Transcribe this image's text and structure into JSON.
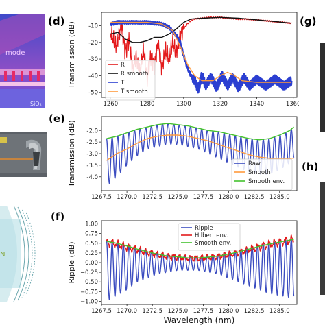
{
  "panel_labels": {
    "d": "(d)",
    "e": "(e)",
    "f": "(f)",
    "g": "(g)",
    "h": "(h)"
  },
  "left_images": {
    "sio2": "SiO₂",
    "mode": "mode"
  },
  "colors": {
    "R": "#e31a1c",
    "R_smooth": "#111111",
    "T": "#2b3fd1",
    "T_smooth": "#ff9a3c",
    "Raw": "#3b4cc0",
    "Smooth": "#ff9a3c",
    "Smooth_env": "#44c22e",
    "Ripple": "#3b4cc0",
    "Hilbert_env": "#e31a1c"
  },
  "chart_data": [
    {
      "id": "d",
      "type": "line",
      "xlabel": "",
      "ylabel": "Transmission (dB)",
      "xlim": [
        1255,
        1362
      ],
      "ylim": [
        -53,
        -2
      ],
      "xticks": [
        1260,
        1280,
        1300,
        1320,
        1340,
        1360
      ],
      "yticks": [
        -10,
        -20,
        -30,
        -40,
        -50
      ],
      "legend_position": "lower-left",
      "series": [
        {
          "name": "R",
          "color_key": "R",
          "x": [
            1260,
            1263,
            1266,
            1268,
            1270,
            1272,
            1274,
            1276,
            1278,
            1280,
            1282,
            1284,
            1286,
            1288,
            1290,
            1292,
            1294,
            1296,
            1298,
            1300,
            1302,
            1304,
            1306,
            1310,
            1315,
            1320,
            1325,
            1330,
            1335,
            1340,
            1345,
            1350,
            1355,
            1359
          ],
          "y": [
            -14,
            -22,
            -10,
            -26,
            -18,
            -36,
            -30,
            -38,
            -24,
            -42,
            -28,
            -34,
            -20,
            -36,
            -25,
            -30,
            -20,
            -26,
            -16,
            -12,
            -9,
            -7,
            -6,
            -5.5,
            -5,
            -5,
            -5.5,
            -6,
            -6,
            -6.5,
            -7,
            -7.5,
            -8,
            -8.5
          ]
        },
        {
          "name": "R smooth",
          "color_key": "R_smooth",
          "x": [
            1260,
            1264,
            1268,
            1272,
            1276,
            1280,
            1284,
            1288,
            1292,
            1296,
            1300,
            1304,
            1310,
            1320,
            1330,
            1340,
            1350,
            1359
          ],
          "y": [
            -15,
            -14,
            -18,
            -20,
            -20,
            -19,
            -17,
            -17,
            -15,
            -12,
            -8,
            -6,
            -5.5,
            -5,
            -5.5,
            -6.5,
            -7.5,
            -8.5
          ]
        },
        {
          "name": "T",
          "color_key": "T",
          "x": [
            1260,
            1264,
            1268,
            1272,
            1276,
            1280,
            1284,
            1288,
            1292,
            1296,
            1298,
            1300,
            1302,
            1304,
            1306,
            1308,
            1310,
            1312,
            1315,
            1318,
            1321,
            1324,
            1327,
            1330,
            1333,
            1336,
            1340,
            1345,
            1350,
            1355,
            1359
          ],
          "y": [
            -9,
            -8,
            -8,
            -8,
            -8,
            -8,
            -8.5,
            -9,
            -11,
            -16,
            -20,
            -28,
            -35,
            -40,
            -43,
            -48,
            -40,
            -46,
            -41,
            -47,
            -40,
            -46,
            -41,
            -47,
            -41,
            -46,
            -42,
            -46,
            -42,
            -46,
            -43
          ]
        },
        {
          "name": "T smooth",
          "color_key": "T_smooth",
          "x": [
            1260,
            1270,
            1280,
            1288,
            1294,
            1298,
            1302,
            1306,
            1310,
            1316,
            1320,
            1324,
            1328,
            1332,
            1340,
            1350,
            1359
          ],
          "y": [
            -8,
            -8,
            -8,
            -9,
            -13,
            -22,
            -33,
            -40,
            -43,
            -43,
            -40,
            -38,
            -40,
            -43,
            -44,
            -44,
            -44
          ]
        }
      ]
    },
    {
      "id": "e",
      "type": "line",
      "xlabel": "",
      "ylabel": "Transmission (dB)",
      "xlim": [
        1267.5,
        1286.7
      ],
      "ylim": [
        -4.6,
        -1.4
      ],
      "xticks": [
        1267.5,
        1270.0,
        1272.5,
        1275.0,
        1277.5,
        1280.0,
        1282.5,
        1285.0
      ],
      "xtick_labels": [
        "1267.5",
        "1270.0",
        "1272.5",
        "1275.0",
        "1277.5",
        "1280.0",
        "1282.5",
        "1285.0"
      ],
      "yticks": [
        -2.0,
        -2.5,
        -3.0,
        -3.5,
        -4.0
      ],
      "ytick_labels": [
        "-2.0",
        "-2.5",
        "-3.0",
        "-3.5",
        "-4.0"
      ],
      "legend_position": "lower-right",
      "ripple_period": 0.55,
      "series": [
        {
          "name": "Raw",
          "color_key": "Raw",
          "kind": "ripple",
          "x": [
            1268.0,
            1269.0,
            1270.0,
            1271.0,
            1272.0,
            1273.0,
            1274.0,
            1275.0,
            1276.0,
            1277.0,
            1278.0,
            1279.0,
            1280.0,
            1281.0,
            1282.0,
            1283.0,
            1284.0,
            1285.0,
            1286.0,
            1286.4
          ],
          "upper": [
            -2.35,
            -2.25,
            -2.1,
            -1.95,
            -1.85,
            -1.75,
            -1.7,
            -1.75,
            -1.8,
            -1.9,
            -2.0,
            -2.05,
            -2.15,
            -2.25,
            -2.35,
            -2.4,
            -2.35,
            -2.2,
            -2.0,
            -1.85
          ],
          "lower": [
            -4.4,
            -4.0,
            -3.5,
            -3.1,
            -2.8,
            -2.7,
            -2.6,
            -2.6,
            -2.7,
            -2.8,
            -3.0,
            -3.2,
            -3.4,
            -3.6,
            -3.8,
            -3.9,
            -3.9,
            -3.7,
            -3.4,
            -3.2
          ]
        },
        {
          "name": "Smooth",
          "color_key": "Smooth",
          "x": [
            1268.0,
            1269.0,
            1270.0,
            1271.0,
            1272.0,
            1273.0,
            1274.0,
            1275.0,
            1276.0,
            1277.0,
            1278.0,
            1279.0,
            1280.0,
            1281.0,
            1282.0,
            1283.0,
            1284.0,
            1285.0,
            1286.0,
            1286.4
          ],
          "y": [
            -3.3,
            -3.0,
            -2.8,
            -2.55,
            -2.35,
            -2.25,
            -2.2,
            -2.2,
            -2.25,
            -2.35,
            -2.45,
            -2.6,
            -2.75,
            -2.9,
            -3.05,
            -3.15,
            -3.2,
            -3.2,
            -3.2,
            -3.2
          ]
        },
        {
          "name": "Smooth env.",
          "color_key": "Smooth_env",
          "x": [
            1268.0,
            1269.0,
            1270.0,
            1271.0,
            1272.0,
            1273.0,
            1274.0,
            1275.0,
            1276.0,
            1277.0,
            1278.0,
            1279.0,
            1280.0,
            1281.0,
            1282.0,
            1283.0,
            1284.0,
            1285.0,
            1286.0,
            1286.4
          ],
          "y": [
            -2.35,
            -2.25,
            -2.1,
            -1.95,
            -1.85,
            -1.75,
            -1.7,
            -1.75,
            -1.8,
            -1.9,
            -2.0,
            -2.05,
            -2.15,
            -2.25,
            -2.35,
            -2.4,
            -2.35,
            -2.2,
            -2.0,
            -1.85
          ]
        }
      ]
    },
    {
      "id": "f",
      "type": "line",
      "xlabel": "Wavelength (nm)",
      "ylabel": "Ripple (dB)",
      "xlim": [
        1267.5,
        1286.7
      ],
      "ylim": [
        -1.08,
        1.08
      ],
      "xticks": [
        1267.5,
        1270.0,
        1272.5,
        1275.0,
        1277.5,
        1280.0,
        1282.5,
        1285.0
      ],
      "xtick_labels": [
        "1267.5",
        "1270.0",
        "1272.5",
        "1275.0",
        "1277.5",
        "1280.0",
        "1282.5",
        "1285.0"
      ],
      "yticks": [
        1.0,
        0.75,
        0.5,
        0.25,
        0.0,
        -0.25,
        -0.5,
        -0.75,
        -1.0
      ],
      "ytick_labels": [
        "1.00",
        "0.75",
        "0.50",
        "0.25",
        "0.00",
        "−0.25",
        "−0.50",
        "−0.75",
        "−1.00"
      ],
      "legend_position": "top-center",
      "ripple_period": 0.55,
      "series": [
        {
          "name": "Ripple",
          "color_key": "Ripple",
          "kind": "ripple",
          "x": [
            1268.0,
            1269.0,
            1270.0,
            1271.0,
            1272.0,
            1273.0,
            1274.0,
            1275.0,
            1276.0,
            1277.0,
            1278.0,
            1279.0,
            1280.0,
            1281.0,
            1282.0,
            1283.0,
            1284.0,
            1285.0,
            1286.0,
            1286.4
          ],
          "upper": [
            0.55,
            0.5,
            0.45,
            0.38,
            0.3,
            0.25,
            0.2,
            0.18,
            0.15,
            0.15,
            0.17,
            0.2,
            0.25,
            0.3,
            0.38,
            0.45,
            0.5,
            0.55,
            0.6,
            0.62
          ],
          "lower": [
            -1.0,
            -0.85,
            -0.7,
            -0.5,
            -0.4,
            -0.3,
            -0.25,
            -0.2,
            -0.2,
            -0.2,
            -0.25,
            -0.3,
            -0.4,
            -0.5,
            -0.6,
            -0.7,
            -0.8,
            -0.85,
            -0.9,
            -0.9
          ]
        },
        {
          "name": "Hilbert env.",
          "color_key": "Hilbert_env",
          "kind": "ripple",
          "jitter": 0.05,
          "x": [
            1268.0,
            1269.0,
            1270.0,
            1271.0,
            1272.0,
            1273.0,
            1274.0,
            1275.0,
            1276.0,
            1277.0,
            1278.0,
            1279.0,
            1280.0,
            1281.0,
            1282.0,
            1283.0,
            1284.0,
            1285.0,
            1286.0,
            1286.4
          ],
          "upper": [
            0.62,
            0.55,
            0.48,
            0.4,
            0.33,
            0.27,
            0.22,
            0.2,
            0.17,
            0.17,
            0.19,
            0.22,
            0.27,
            0.33,
            0.4,
            0.48,
            0.55,
            0.6,
            0.66,
            0.68
          ],
          "lower": [
            0.45,
            0.4,
            0.33,
            0.27,
            0.2,
            0.14,
            0.1,
            0.08,
            0.06,
            0.06,
            0.08,
            0.1,
            0.15,
            0.2,
            0.27,
            0.33,
            0.4,
            0.45,
            0.5,
            0.52
          ]
        },
        {
          "name": "Smooth env.",
          "color_key": "Smooth_env",
          "x": [
            1268.0,
            1269.0,
            1270.0,
            1271.0,
            1272.0,
            1273.0,
            1274.0,
            1275.0,
            1276.0,
            1277.0,
            1278.0,
            1279.0,
            1280.0,
            1281.0,
            1282.0,
            1283.0,
            1284.0,
            1285.0,
            1286.0,
            1286.4
          ],
          "y": [
            0.55,
            0.5,
            0.43,
            0.35,
            0.28,
            0.22,
            0.17,
            0.15,
            0.12,
            0.12,
            0.14,
            0.17,
            0.22,
            0.28,
            0.35,
            0.42,
            0.48,
            0.53,
            0.58,
            0.6
          ]
        }
      ]
    }
  ]
}
